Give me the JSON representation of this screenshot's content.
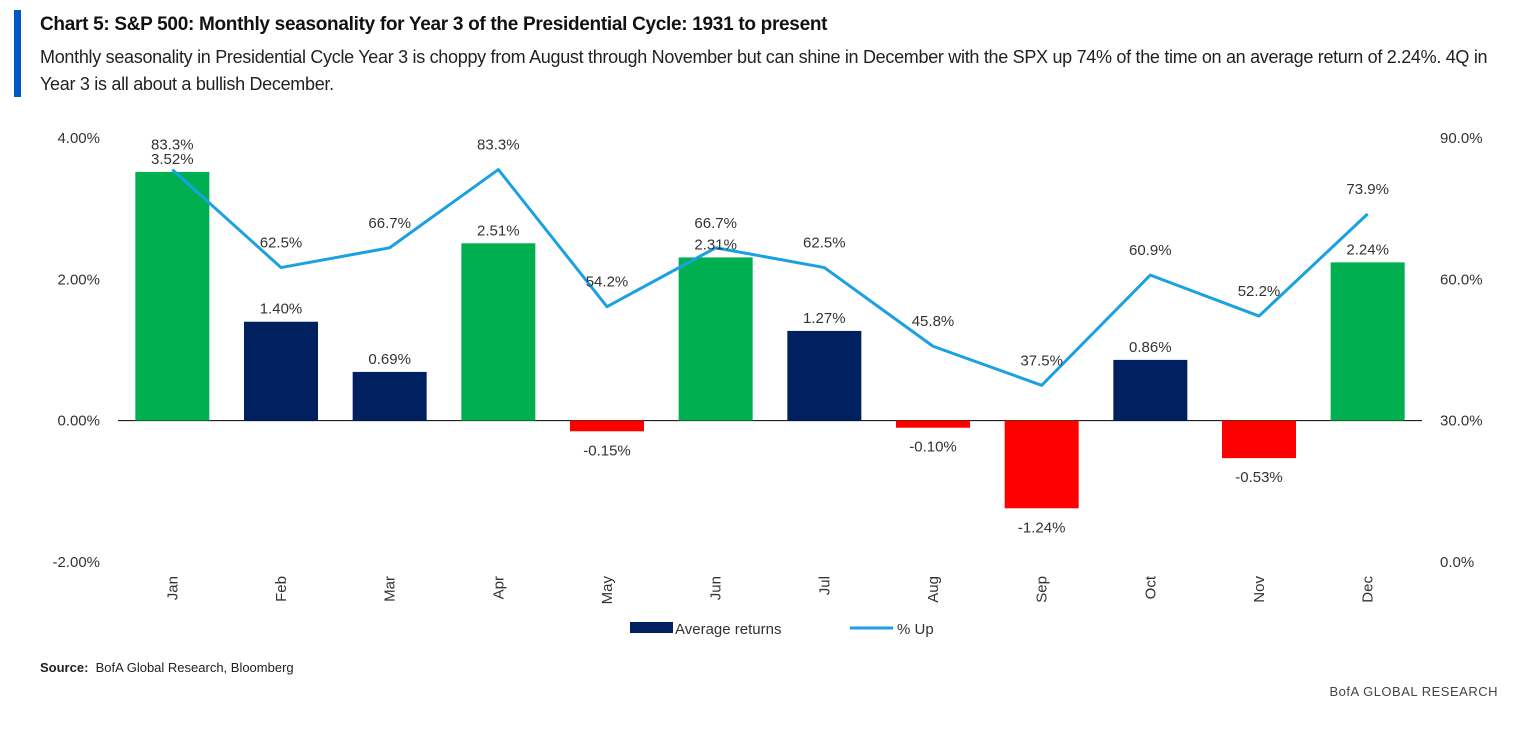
{
  "title": "Chart 5: S&P 500: Monthly seasonality for Year 3 of the Presidential Cycle: 1931 to present",
  "subtitle": "Monthly seasonality in Presidential Cycle Year 3 is choppy from August through November but can shine in December with the SPX up 74% of the time on an average return of 2.24%. 4Q in Year 3 is all about a bullish December.",
  "source_label": "Source:",
  "source_text": "BofA Global Research, Bloomberg",
  "brand": "BofA GLOBAL RESEARCH",
  "colors": {
    "accent": "#0057c8",
    "bar_default": "#002060",
    "bar_top": "#00b050",
    "bar_negative": "#ff0000",
    "line": "#1ba1e2"
  },
  "chart_data": {
    "type": "bar+line",
    "categories": [
      "Jan",
      "Feb",
      "Mar",
      "Apr",
      "May",
      "Jun",
      "Jul",
      "Aug",
      "Sep",
      "Oct",
      "Nov",
      "Dec"
    ],
    "series": [
      {
        "name": "Average returns",
        "type": "bar",
        "axis": "left",
        "values": [
          3.52,
          1.4,
          0.69,
          2.51,
          -0.15,
          2.31,
          1.27,
          -0.1,
          -1.24,
          0.86,
          -0.53,
          2.24
        ],
        "labels": [
          "3.52%",
          "1.40%",
          "0.69%",
          "2.51%",
          "-0.15%",
          "2.31%",
          "1.27%",
          "-0.10%",
          "-1.24%",
          "0.86%",
          "-0.53%",
          "2.24%"
        ],
        "highlighted": [
          "Jan",
          "Apr",
          "Jun",
          "Dec"
        ]
      },
      {
        "name": "% Up",
        "type": "line",
        "axis": "right",
        "values": [
          83.3,
          62.5,
          66.7,
          83.3,
          54.2,
          66.7,
          62.5,
          45.8,
          37.5,
          60.9,
          52.2,
          73.9
        ],
        "labels": [
          "83.3%",
          "62.5%",
          "66.7%",
          "83.3%",
          "54.2%",
          "66.7%",
          "62.5%",
          "45.8%",
          "37.5%",
          "60.9%",
          "52.2%",
          "73.9%"
        ]
      }
    ],
    "left_axis": {
      "ylim": [
        -2,
        4
      ],
      "ticks": [
        "-2.00%",
        "0.00%",
        "2.00%",
        "4.00%"
      ],
      "tick_values": [
        -2,
        0,
        2,
        4
      ]
    },
    "right_axis": {
      "ylim": [
        0,
        90
      ],
      "ticks": [
        "0.0%",
        "30.0%",
        "60.0%",
        "90.0%"
      ],
      "tick_values": [
        0,
        30,
        60,
        90
      ]
    },
    "grid": false,
    "legend": "bottom"
  }
}
